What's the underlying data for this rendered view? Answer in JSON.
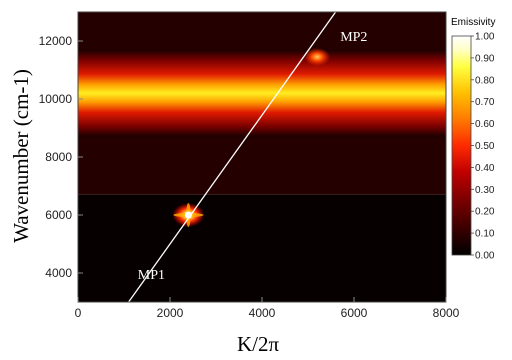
{
  "chart_data": {
    "type": "heatmap",
    "title": "",
    "xlabel": "K/2π",
    "ylabel": "Wavenumber (cm-1)",
    "xlim": [
      0,
      8000
    ],
    "ylim": [
      3000,
      13000
    ],
    "x_ticks": [
      0,
      2000,
      4000,
      6000,
      8000
    ],
    "y_ticks": [
      4000,
      6000,
      8000,
      10000,
      12000
    ],
    "colorbar": {
      "title": "Emissivity",
      "range": [
        0,
        1
      ],
      "ticks": [
        "0.00",
        "0.10",
        "0.20",
        "0.30",
        "0.40",
        "0.50",
        "0.60",
        "0.70",
        "0.80",
        "0.90",
        "1.00"
      ],
      "colormap": [
        "#000000",
        "#3a0000",
        "#7a0000",
        "#c00000",
        "#ff2a00",
        "#ff7a00",
        "#ffc000",
        "#ffff40",
        "#ffffc8",
        "#ffffff"
      ]
    },
    "features": {
      "horizontal_band": {
        "center": 10200,
        "peak_emissivity": 0.85
      },
      "background_shift_wavenumber": 6700
    },
    "line": {
      "points": [
        [
          1100,
          3000
        ],
        [
          5600,
          13000
        ]
      ],
      "color": "#ffffff"
    },
    "annotations": [
      {
        "text": "MP1",
        "x": 2400,
        "y": 6000,
        "label_x": 1300,
        "label_y": 3800
      },
      {
        "text": "MP2",
        "x": 5200,
        "y": 11450,
        "label_x": 5700,
        "label_y": 12000
      }
    ]
  }
}
